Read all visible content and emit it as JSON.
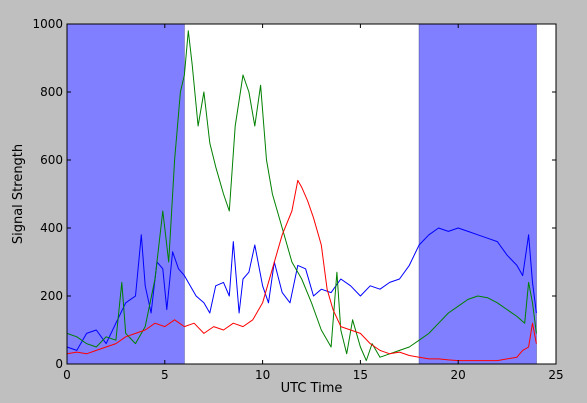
{
  "chart_data": {
    "type": "line",
    "title": "",
    "xlabel": "UTC Time",
    "ylabel": "Signal Strength",
    "xlim": [
      0,
      25
    ],
    "ylim": [
      0,
      1000
    ],
    "xticks": [
      0,
      5,
      10,
      15,
      20,
      25
    ],
    "yticks": [
      0,
      200,
      400,
      600,
      800,
      1000
    ],
    "grid": false,
    "legend": "none",
    "shaded_regions": [
      {
        "x0": 0,
        "x1": 6,
        "color": "#7f7fff"
      },
      {
        "x0": 18,
        "x1": 24,
        "color": "#7f7fff"
      }
    ],
    "series": [
      {
        "color": "#0000ff",
        "x": [
          0,
          0.5,
          1.0,
          1.5,
          2.0,
          2.5,
          3.0,
          3.5,
          3.8,
          4.0,
          4.3,
          4.6,
          4.9,
          5.1,
          5.4,
          5.7,
          6.0,
          6.3,
          6.6,
          7.0,
          7.3,
          7.6,
          8.0,
          8.3,
          8.5,
          8.8,
          9.0,
          9.3,
          9.6,
          10.0,
          10.3,
          10.6,
          11.0,
          11.4,
          11.8,
          12.2,
          12.6,
          13.0,
          13.5,
          14.0,
          14.5,
          15.0,
          15.5,
          16.0,
          16.5,
          17.0,
          17.5,
          18.0,
          18.5,
          19.0,
          19.5,
          20.0,
          20.5,
          21.0,
          21.5,
          22.0,
          22.5,
          23.0,
          23.3,
          23.6,
          23.8,
          24.0
        ],
        "y": [
          50,
          40,
          90,
          100,
          60,
          120,
          180,
          200,
          380,
          230,
          150,
          300,
          280,
          160,
          330,
          280,
          260,
          230,
          200,
          180,
          150,
          230,
          240,
          200,
          360,
          150,
          250,
          270,
          350,
          230,
          180,
          300,
          210,
          180,
          290,
          280,
          200,
          220,
          210,
          250,
          230,
          200,
          230,
          220,
          240,
          250,
          290,
          350,
          380,
          400,
          390,
          400,
          390,
          380,
          370,
          360,
          320,
          290,
          260,
          380,
          240,
          150
        ]
      },
      {
        "color": "#008000",
        "x": [
          0,
          0.5,
          1.0,
          1.5,
          2.0,
          2.5,
          2.8,
          3.0,
          3.5,
          4.0,
          4.5,
          4.9,
          5.2,
          5.5,
          5.8,
          6.0,
          6.2,
          6.4,
          6.7,
          7.0,
          7.3,
          7.6,
          8.0,
          8.3,
          8.6,
          9.0,
          9.3,
          9.6,
          9.9,
          10.2,
          10.5,
          11.0,
          11.5,
          12.0,
          12.5,
          13.0,
          13.5,
          13.8,
          14.0,
          14.3,
          14.6,
          15.0,
          15.3,
          15.6,
          16.0,
          16.5,
          17.0,
          17.5,
          18.0,
          18.5,
          19.0,
          19.5,
          20.0,
          20.5,
          21.0,
          21.5,
          22.0,
          22.5,
          23.0,
          23.4,
          23.6,
          23.8,
          24.0
        ],
        "y": [
          90,
          80,
          60,
          50,
          80,
          70,
          240,
          90,
          60,
          110,
          250,
          450,
          300,
          600,
          800,
          850,
          980,
          880,
          700,
          800,
          650,
          580,
          500,
          450,
          700,
          850,
          800,
          700,
          820,
          600,
          500,
          400,
          300,
          250,
          180,
          100,
          50,
          270,
          100,
          30,
          130,
          50,
          10,
          60,
          20,
          30,
          40,
          50,
          70,
          90,
          120,
          150,
          170,
          190,
          200,
          195,
          180,
          160,
          140,
          120,
          240,
          180,
          90
        ]
      },
      {
        "color": "#ff0000",
        "x": [
          0,
          0.5,
          1.0,
          1.5,
          2.0,
          2.5,
          3.0,
          3.5,
          4.0,
          4.5,
          5.0,
          5.5,
          6.0,
          6.5,
          7.0,
          7.5,
          8.0,
          8.5,
          9.0,
          9.5,
          10.0,
          10.5,
          11.0,
          11.5,
          11.8,
          12.0,
          12.3,
          12.6,
          13.0,
          13.3,
          13.6,
          14.0,
          14.5,
          15.0,
          15.5,
          16.0,
          16.5,
          17.0,
          17.5,
          18.0,
          18.5,
          19.0,
          19.5,
          20.0,
          20.5,
          21.0,
          21.5,
          22.0,
          22.5,
          23.0,
          23.3,
          23.6,
          23.8,
          24.0
        ],
        "y": [
          30,
          35,
          30,
          40,
          50,
          60,
          80,
          90,
          100,
          120,
          110,
          130,
          110,
          120,
          90,
          110,
          100,
          120,
          110,
          130,
          180,
          280,
          380,
          450,
          540,
          520,
          480,
          430,
          350,
          220,
          160,
          110,
          100,
          90,
          60,
          40,
          30,
          35,
          25,
          20,
          15,
          15,
          12,
          10,
          10,
          10,
          10,
          10,
          15,
          20,
          40,
          50,
          120,
          60
        ]
      }
    ]
  }
}
